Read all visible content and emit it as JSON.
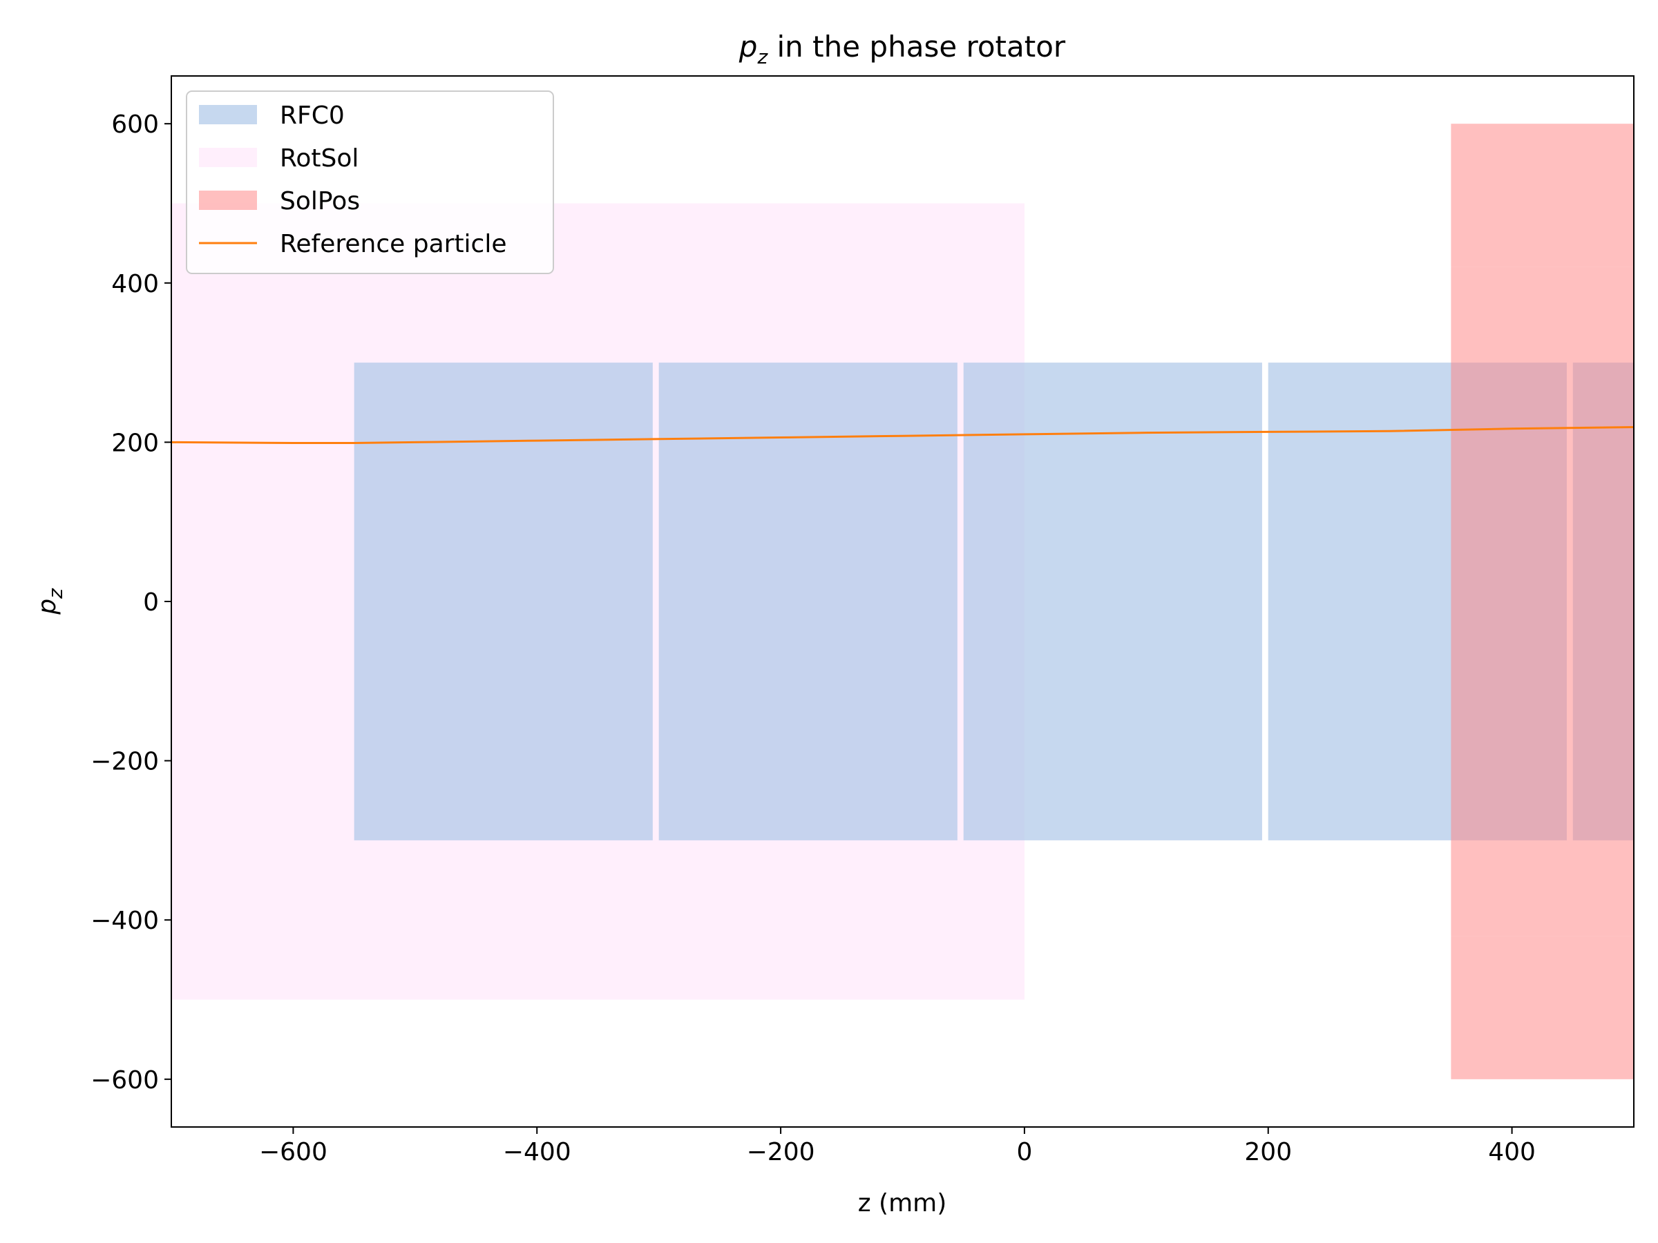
{
  "chart_data": {
    "type": "area",
    "title_main": "p",
    "title_sub": "z",
    "title_rest": " in the phase rotator",
    "xlabel": "z (mm)",
    "ylabel_main": "p",
    "ylabel_sub": "z",
    "xlim": [
      -700,
      500
    ],
    "ylim": [
      -660,
      660
    ],
    "xticks": [
      -600,
      -400,
      -200,
      0,
      200,
      400
    ],
    "yticks": [
      -600,
      -400,
      -200,
      0,
      200,
      400,
      600
    ],
    "xtick_labels": [
      "−600",
      "−400",
      "−200",
      "0",
      "200",
      "400"
    ],
    "ytick_labels": [
      "−600",
      "−400",
      "−200",
      "0",
      "200",
      "400",
      "600"
    ],
    "legend_position": "upper-left",
    "legend": [
      {
        "label": "RFC0",
        "kind": "patch",
        "color": "#aec7e8",
        "opacity": 0.7
      },
      {
        "label": "RotSol",
        "kind": "patch",
        "color": "#ffe0fa",
        "opacity": 0.5
      },
      {
        "label": "SolPos",
        "kind": "patch",
        "color": "#ff8080",
        "opacity": 0.5
      },
      {
        "label": "Reference particle",
        "kind": "line",
        "color": "#ff7f0e"
      }
    ],
    "regions": {
      "RotSol": {
        "color": "#ffe0fa",
        "opacity": 0.5,
        "rects": [
          {
            "x0": -700,
            "x1": 0,
            "y0": -500,
            "y1": -360
          },
          {
            "x0": -700,
            "x1": 0,
            "y0": -360,
            "y1": 360
          },
          {
            "x0": -700,
            "x1": 0,
            "y0": 360,
            "y1": 500
          }
        ]
      },
      "RFC0": {
        "color": "#aec7e8",
        "opacity": 0.7,
        "rects": [
          {
            "x0": -550,
            "x1": -305,
            "y0": -300,
            "y1": 300
          },
          {
            "x0": -300,
            "x1": -55,
            "y0": -300,
            "y1": 300
          },
          {
            "x0": -50,
            "x1": 195,
            "y0": -300,
            "y1": 300
          },
          {
            "x0": 200,
            "x1": 445,
            "y0": -300,
            "y1": 300
          },
          {
            "x0": 450,
            "x1": 695,
            "y0": -300,
            "y1": 300
          }
        ]
      },
      "SolPos": {
        "color": "#ff8080",
        "opacity": 0.5,
        "rects": [
          {
            "x0": 350,
            "x1": 650,
            "y0": -600,
            "y1": -420
          },
          {
            "x0": 350,
            "x1": 650,
            "y0": -420,
            "y1": 420
          },
          {
            "x0": 350,
            "x1": 650,
            "y0": 420,
            "y1": 600
          }
        ]
      }
    },
    "series": [
      {
        "name": "Reference particle",
        "color": "#ff7f0e",
        "x": [
          -700,
          -600,
          -550,
          -500,
          -400,
          -300,
          -200,
          -100,
          0,
          100,
          200,
          300,
          400,
          450,
          500
        ],
        "y": [
          200,
          199,
          199,
          200,
          202,
          204,
          206,
          208,
          210,
          212,
          213,
          214,
          217,
          218,
          219
        ]
      }
    ]
  }
}
